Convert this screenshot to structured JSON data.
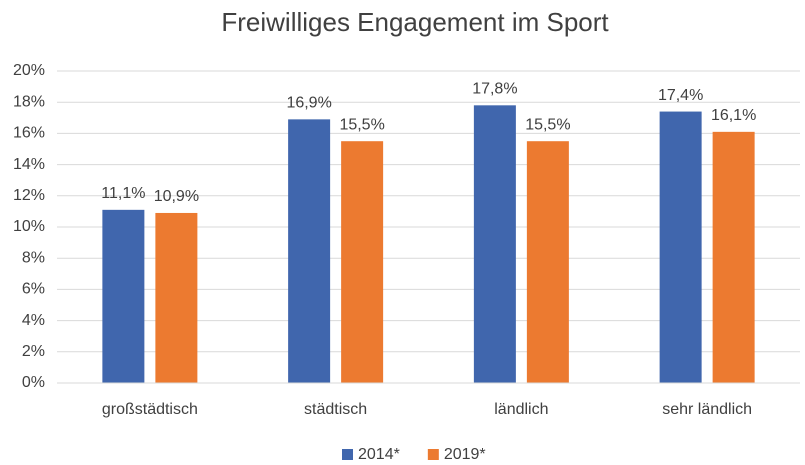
{
  "chart_data": {
    "type": "bar",
    "title": "Freiwilliges Engagement im Sport",
    "categories": [
      "großstädtisch",
      "städtisch",
      "ländlich",
      "sehr ländlich"
    ],
    "series": [
      {
        "name": "2014*",
        "color": "#4066ad",
        "values": [
          11.1,
          16.9,
          17.8,
          17.4
        ],
        "value_labels": [
          "11,1%",
          "16,9%",
          "17,8%",
          "17,4%"
        ]
      },
      {
        "name": "2019*",
        "color": "#ec7a30",
        "values": [
          10.9,
          15.5,
          15.5,
          16.1
        ],
        "value_labels": [
          "10,9%",
          "15,5%",
          "15,5%",
          "16,1%"
        ]
      }
    ],
    "ylim": [
      0,
      20
    ],
    "yticks": [
      {
        "value": 0,
        "label": "0%"
      },
      {
        "value": 2,
        "label": "2%"
      },
      {
        "value": 4,
        "label": "4%"
      },
      {
        "value": 6,
        "label": "6%"
      },
      {
        "value": 8,
        "label": "8%"
      },
      {
        "value": 10,
        "label": "10%"
      },
      {
        "value": 12,
        "label": "12%"
      },
      {
        "value": 14,
        "label": "14%"
      },
      {
        "value": 16,
        "label": "16%"
      },
      {
        "value": 18,
        "label": "18%"
      },
      {
        "value": 20,
        "label": "20%"
      }
    ],
    "grid": true,
    "legend": "bottom"
  }
}
